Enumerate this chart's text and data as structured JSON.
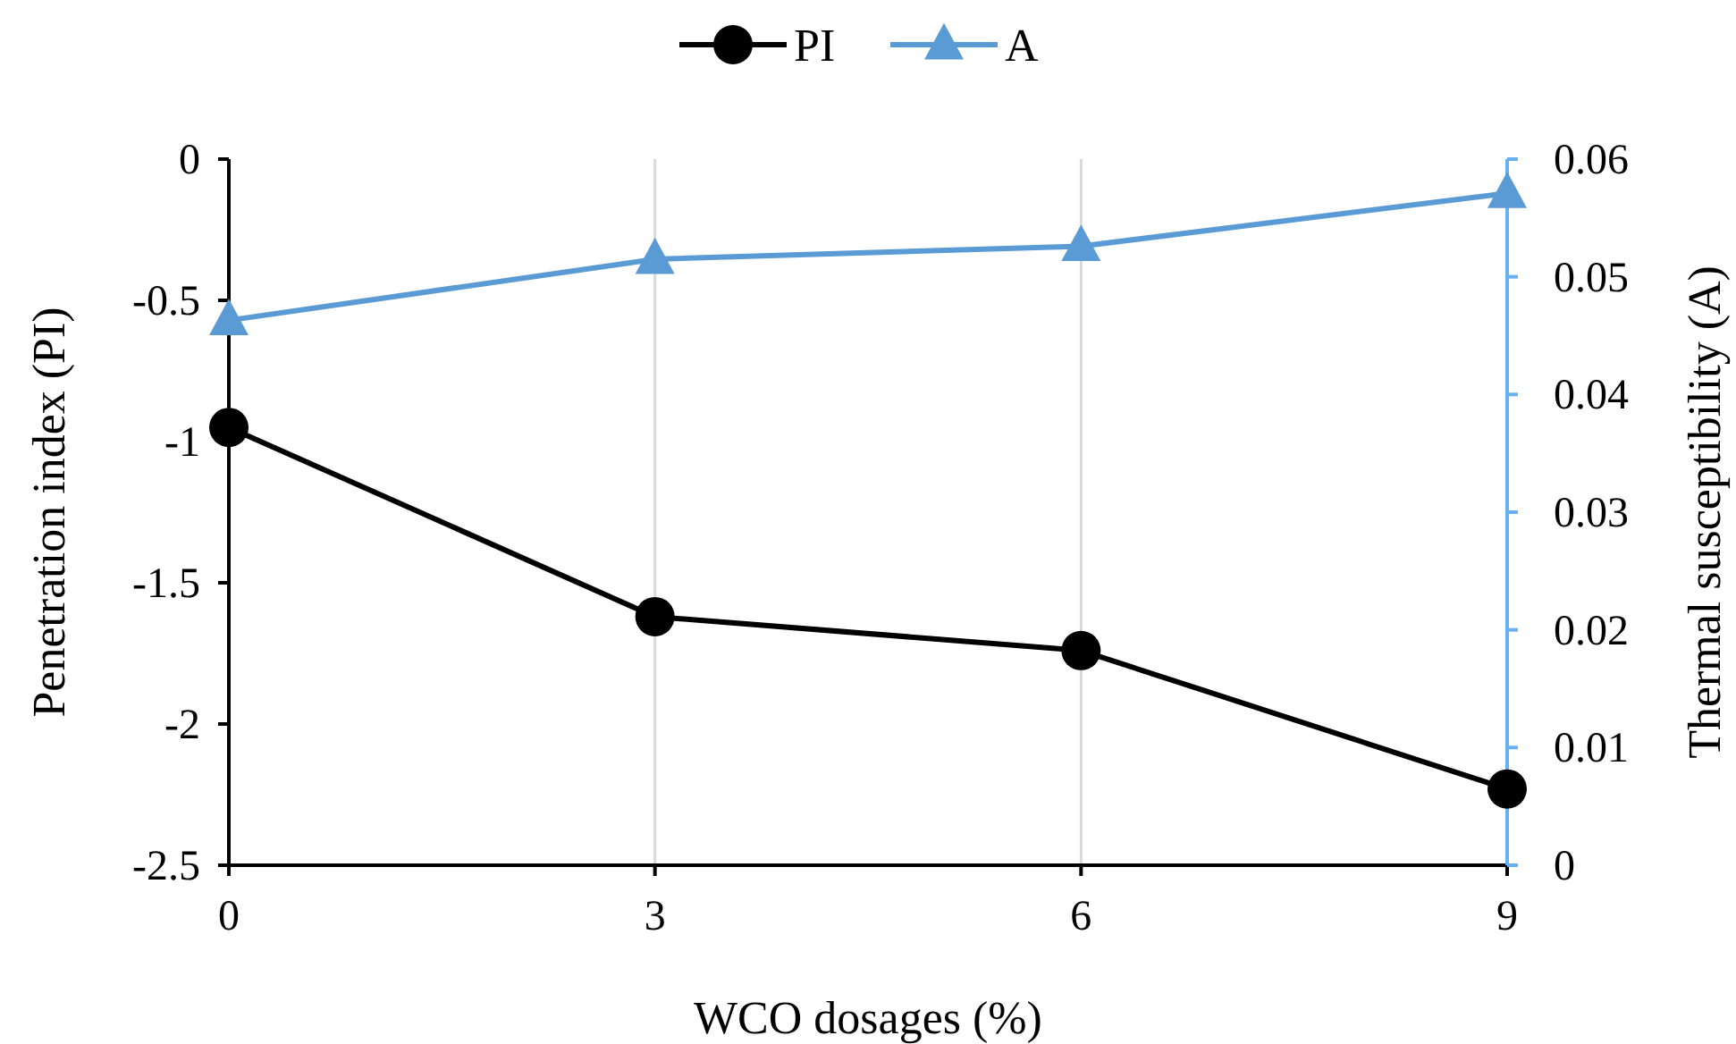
{
  "chart_data": {
    "type": "line",
    "xlabel": "WCO dosages (%)",
    "ylabel": "Penetration index (PI)",
    "y2label": "Thermal susceptibility (A)",
    "x": [
      0,
      3,
      6,
      9
    ],
    "xlim": [
      0,
      9
    ],
    "xticks": [
      0,
      3,
      6,
      9
    ],
    "ylim": [
      -2.5,
      0
    ],
    "yticks": [
      -2.5,
      -2,
      -1.5,
      -1,
      -0.5,
      0
    ],
    "y2lim": [
      0,
      0.06
    ],
    "y2ticks": [
      0,
      0.01,
      0.02,
      0.03,
      0.04,
      0.05,
      0.06
    ],
    "grid": "x",
    "legend": "top",
    "series": [
      {
        "name": "PI",
        "color": "#000000",
        "values": [
          -0.95,
          -1.62,
          -1.74,
          -2.23
        ],
        "marker": "circle"
      },
      {
        "name": "A",
        "color": "#5b9bd5",
        "values": [
          0.0463,
          0.0515,
          0.0526,
          0.0571
        ],
        "marker": "triangle",
        "axis": "y2"
      }
    ]
  }
}
